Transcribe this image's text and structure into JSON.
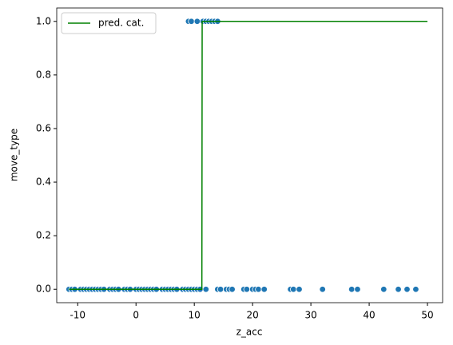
{
  "chart_data": {
    "type": "scatter",
    "xlabel": "z_acc",
    "ylabel": "move_type",
    "xlim": [
      -13.6,
      52.6
    ],
    "ylim": [
      -0.05,
      1.05
    ],
    "xticks": [
      -10,
      0,
      10,
      20,
      30,
      40,
      50
    ],
    "yticks": [
      {
        "value": 0,
        "label": "0.0"
      },
      0.2,
      0.4,
      0.6,
      0.8,
      {
        "value": 1,
        "label": "1.0"
      }
    ],
    "grid": false,
    "legend": "upper left",
    "series": [
      {
        "type": "scatter",
        "color": "#1f77b4",
        "x": [
          -11.5,
          -11,
          -10.5,
          -9.5,
          -9,
          -8.5,
          -8,
          -7.5,
          -7,
          -6.5,
          -6,
          -5.5,
          -4.5,
          -4,
          -3.5,
          -3,
          -2,
          -1.5,
          -1,
          0,
          0.5,
          1,
          1.5,
          2,
          2.5,
          3,
          3.5,
          4.5,
          5,
          5.5,
          6,
          6.5,
          7,
          8,
          8.5,
          9,
          9.5,
          10,
          10.5,
          11,
          12,
          14,
          14.5,
          15.5,
          16,
          16.5,
          18.5,
          19,
          20,
          20.5,
          21,
          22,
          26.5,
          27,
          28,
          32,
          37,
          38,
          42.5,
          45,
          46.5,
          48,
          9,
          9.5,
          10.5,
          11.5,
          12,
          12.5,
          13,
          13.5,
          14
        ],
        "values": [
          0,
          0,
          0,
          0,
          0,
          0,
          0,
          0,
          0,
          0,
          0,
          0,
          0,
          0,
          0,
          0,
          0,
          0,
          0,
          0,
          0,
          0,
          0,
          0,
          0,
          0,
          0,
          0,
          0,
          0,
          0,
          0,
          0,
          0,
          0,
          0,
          0,
          0,
          0,
          0,
          0,
          0,
          0,
          0,
          0,
          0,
          0,
          0,
          0,
          0,
          0,
          0,
          0,
          0,
          0,
          0,
          0,
          0,
          0,
          0,
          0,
          0,
          1,
          1,
          1,
          1,
          1,
          1,
          1,
          1,
          1
        ]
      },
      {
        "type": "line",
        "name": "pred. cat.",
        "color": "green",
        "x": [
          -11.5,
          11.3,
          11.35,
          50
        ],
        "values": [
          0,
          0,
          1,
          1
        ]
      }
    ]
  }
}
